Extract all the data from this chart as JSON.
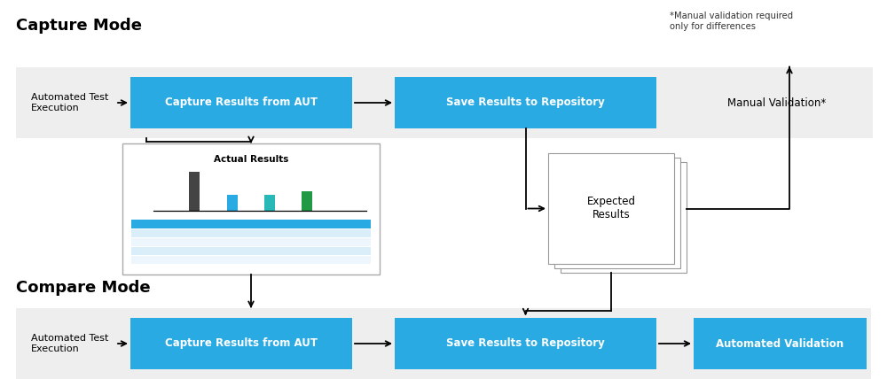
{
  "bg_color": "#ffffff",
  "title_capture": "Capture Mode",
  "title_compare": "Compare Mode",
  "note_text": "*Manual validation required\nonly for differences",
  "band_color": "#eeeeee",
  "blue_box_color": "#29aae2",
  "blue_box_text_color": "#ffffff",
  "label_auto_test": "Automated Test\nExecution",
  "label_capture_aut": "Capture Results from AUT",
  "label_save_repo": "Save Results to Repository",
  "label_manual_val": "Manual Validation*",
  "label_auto_val": "Automated Validation",
  "label_actual": "Actual Results",
  "label_expected": "Expected\nResults",
  "bar_colors": [
    "#444444",
    "#29aae2",
    "#29c4c4",
    "#29aa44"
  ],
  "table_header_color": "#29aae2",
  "table_row1_color": "#d6eaf8",
  "table_row2_color": "#e8f4fb",
  "table_row3_color": "#d6eaf8",
  "table_row4_color": "#e8f4fb",
  "page_bg": "#ffffff",
  "page_edge": "#aaaaaa",
  "page_shadow": "#cccccc"
}
